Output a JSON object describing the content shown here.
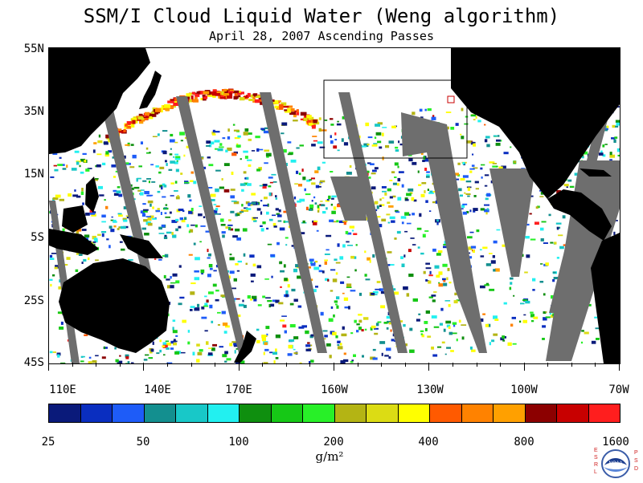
{
  "title": "SSM/I Cloud Liquid Water (Weng algorithm)",
  "subtitle": "April 28, 2007  Ascending Passes",
  "lat_labels": [
    "55N",
    "35N",
    "15N",
    "5S",
    "25S",
    "45S"
  ],
  "lon_labels": [
    "110E",
    "140E",
    "170E",
    "160W",
    "130W",
    "100W",
    "70W"
  ],
  "colorbar": {
    "tick_labels": [
      "25",
      "50",
      "100",
      "200",
      "400",
      "800",
      "1600"
    ],
    "colors": [
      "#0a1a7a",
      "#0a2ec0",
      "#1e5cf8",
      "#138f8f",
      "#18c8c8",
      "#22f0f0",
      "#0f8f0f",
      "#16c816",
      "#28f028",
      "#b4b414",
      "#dcdc14",
      "#ffff00",
      "#ff5a00",
      "#ff8200",
      "#ffa000",
      "#8c0000",
      "#c80000",
      "#ff1e1e"
    ],
    "units": "g/m²"
  },
  "map": {
    "land_color": "#000000",
    "no_data_color": "#6e6e6e",
    "ocean_color": "#ffffff",
    "inset_box_color": "#000000"
  },
  "logo": {
    "left_text": "ESRL",
    "right_text": "PSD",
    "center_text": "NOAA"
  }
}
